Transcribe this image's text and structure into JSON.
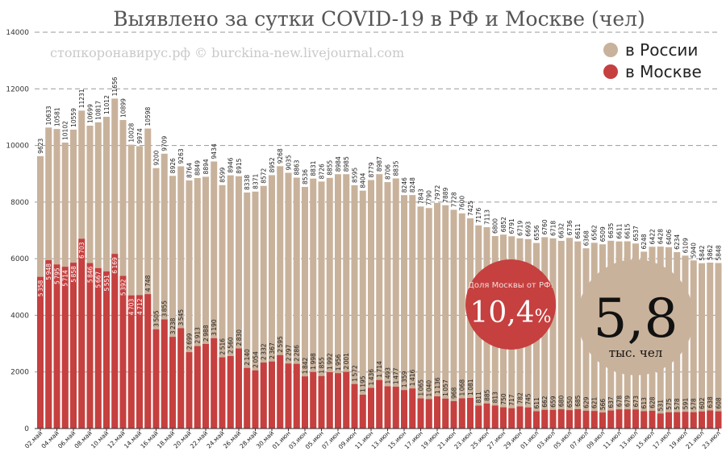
{
  "chart_data": {
    "type": "bar",
    "title": "Выявлено за сутки COVID-19 в РФ и Москве (чел)",
    "source": "стопкоронавирус.рф © burckina-new.livejournal.com",
    "ylim": [
      0,
      14000
    ],
    "yticks": [
      0,
      2000,
      4000,
      6000,
      8000,
      10000,
      12000,
      14000
    ],
    "grid": true,
    "legend_position": "top-right",
    "colors": {
      "russia": "#c9b29b",
      "moscow": "#c5403f",
      "grid": "#9a9a9a",
      "axis": "#333333"
    },
    "x_tick_labels": [
      "02.май",
      "04.май",
      "06.май",
      "08.май",
      "10.май",
      "12.май",
      "14.май",
      "16.май",
      "18.май",
      "20.май",
      "22.май",
      "24.май",
      "26.май",
      "28.май",
      "30.май",
      "01.июн",
      "03.июн",
      "05.июн",
      "07.июн",
      "09.июн",
      "11.июн",
      "13.июн",
      "15.июн",
      "17.июн",
      "19.июн",
      "21.июн",
      "23.июн",
      "25.июн",
      "27.июн",
      "29.июн",
      "01.июл",
      "03.июл",
      "05.июл",
      "07.июл",
      "09.июл",
      "11.июл",
      "13.июл",
      "15.июл",
      "17.июл",
      "19.июл",
      "21.июл",
      "23.июл"
    ],
    "series": [
      {
        "name": "в России",
        "values": [
          9623,
          10633,
          10581,
          10102,
          10559,
          11231,
          10699,
          10817,
          11012,
          11656,
          10899,
          10028,
          9974,
          10598,
          9200,
          9709,
          8926,
          9263,
          8764,
          8849,
          8894,
          9434,
          8599,
          8946,
          8915,
          8338,
          8371,
          8572,
          8952,
          9268,
          9035,
          8863,
          8536,
          8831,
          8726,
          8855,
          8984,
          8985,
          8595,
          8404,
          8779,
          8987,
          8706,
          8835,
          8246,
          8248,
          7843,
          7790,
          7972,
          7889,
          7728,
          7600,
          7425,
          7176,
          7113,
          6800,
          6852,
          6791,
          6719,
          6693,
          6556,
          6760,
          6718,
          6632,
          6736,
          6611,
          6368,
          6562,
          6509,
          6635,
          6611,
          6615,
          6537,
          6248,
          6422,
          6428,
          6406,
          6234,
          6109,
          5940,
          5842,
          5862,
          5848
        ]
      },
      {
        "name": "в Москве",
        "values": [
          5358,
          5948,
          5795,
          5714,
          5858,
          6703,
          5846,
          5667,
          5551,
          6169,
          5392,
          4703,
          4712,
          4748,
          3505,
          3855,
          3238,
          3545,
          2699,
          2913,
          2988,
          3190,
          2516,
          2560,
          2830,
          2140,
          2054,
          2332,
          2367,
          2595,
          2297,
          2286,
          1842,
          1998,
          1855,
          1992,
          1956,
          2001,
          1572,
          1195,
          1436,
          1714,
          1493,
          1477,
          1359,
          1416,
          1065,
          1040,
          1136,
          1057,
          968,
          1068,
          1081,
          811,
          885,
          813,
          750,
          717,
          782,
          745,
          611,
          662,
          659,
          680,
          650,
          685,
          629,
          621,
          566,
          637,
          678,
          679,
          673,
          613,
          628,
          531,
          575,
          578,
          591,
          578,
          602,
          638,
          608
        ]
      }
    ]
  },
  "badges": {
    "share": {
      "caption": "Доля Москвы от РФ:",
      "value": "10,4",
      "unit": "%"
    },
    "count": {
      "value": "5,8",
      "unit": "тыс. чел"
    }
  }
}
